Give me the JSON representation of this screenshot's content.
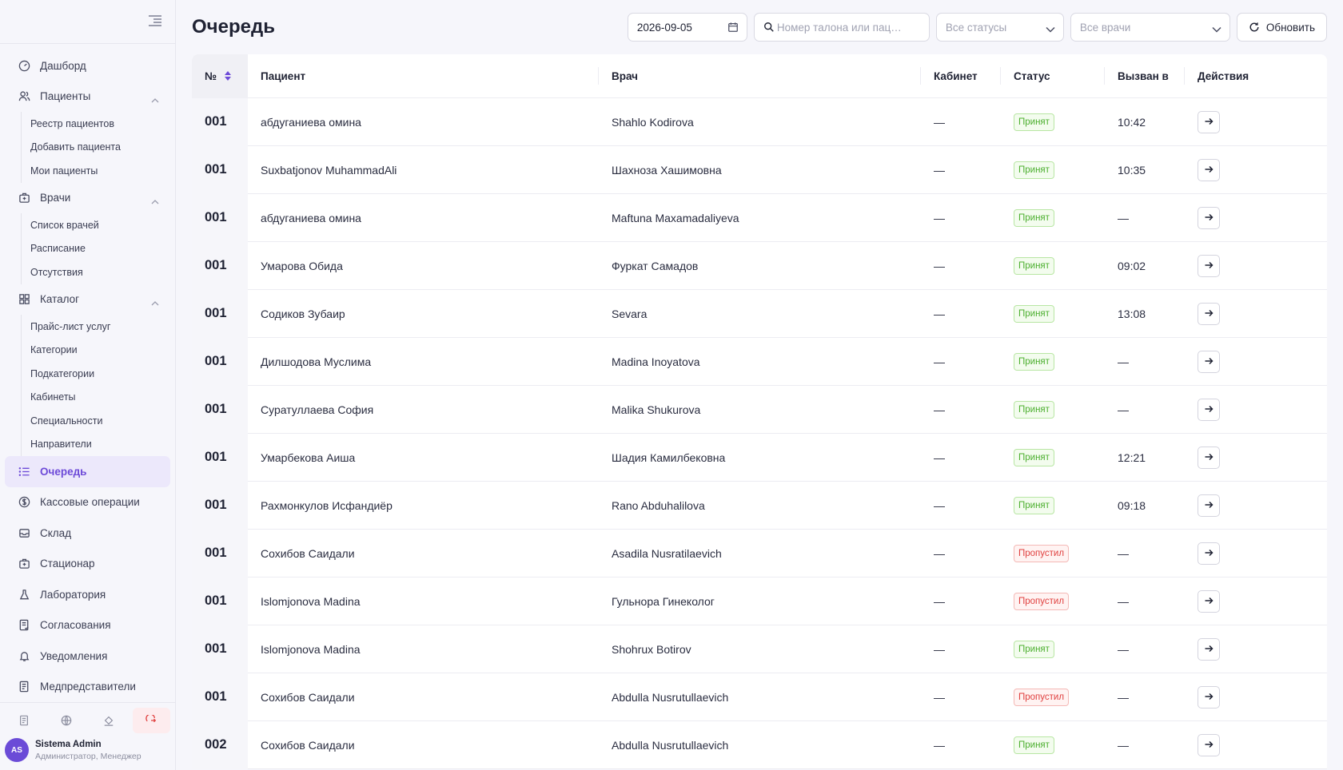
{
  "sidebar": {
    "items": [
      {
        "label": "Дашборд"
      },
      {
        "label": "Пациенты"
      },
      {
        "label": "Врачи"
      },
      {
        "label": "Каталог"
      },
      {
        "label": "Очередь"
      },
      {
        "label": "Кассовые операции"
      },
      {
        "label": "Склад"
      },
      {
        "label": "Стационар"
      },
      {
        "label": "Лаборатория"
      },
      {
        "label": "Согласования"
      },
      {
        "label": "Уведомления"
      },
      {
        "label": "Медпредставители"
      }
    ],
    "patients_sub": [
      "Реестр пациентов",
      "Добавить пациента",
      "Мои пациенты"
    ],
    "doctors_sub": [
      "Список врачей",
      "Расписание",
      "Отсутствия"
    ],
    "catalog_sub": [
      "Прайс-лист услуг",
      "Категории",
      "Подкатегории",
      "Кабинеты",
      "Специальности",
      "Направители"
    ],
    "active_item": "Очередь"
  },
  "user": {
    "initials": "AS",
    "name": "Sistema Admin",
    "role": "Администратор, Менеджер"
  },
  "header": {
    "title": "Очередь",
    "date_value": "2026-09-05",
    "search_placeholder": "Номер талона или пац…",
    "status_select": "Все статусы",
    "doctor_select": "Все врачи",
    "refresh_label": "Обновить"
  },
  "table": {
    "columns": [
      "№",
      "Пациент",
      "Врач",
      "Кабинет",
      "Статус",
      "Вызван в",
      "Действия"
    ],
    "rows": [
      {
        "num": "001",
        "patient": "абдуганиева омина",
        "doctor": "Shahlo Kodirova",
        "cabinet": "—",
        "status": "Принят",
        "called": "10:42"
      },
      {
        "num": "001",
        "patient": "Suxbatjonov MuhammadAli",
        "doctor": "Шахноза Хашимовна",
        "cabinet": "—",
        "status": "Принят",
        "called": "10:35"
      },
      {
        "num": "001",
        "patient": "абдуганиева омина",
        "doctor": "Maftuna Maxamadaliyeva",
        "cabinet": "—",
        "status": "Принят",
        "called": "—"
      },
      {
        "num": "001",
        "patient": "Умарова Обида",
        "doctor": "Фуркат Самадов",
        "cabinet": "—",
        "status": "Принят",
        "called": "09:02"
      },
      {
        "num": "001",
        "patient": "Содиков Зубаир",
        "doctor": "Sevara",
        "cabinet": "—",
        "status": "Принят",
        "called": "13:08"
      },
      {
        "num": "001",
        "patient": "Дилшодова Муслима",
        "doctor": "Madina Inoyatova",
        "cabinet": "—",
        "status": "Принят",
        "called": "—"
      },
      {
        "num": "001",
        "patient": "Суратуллаева София",
        "doctor": "Malika Shukurova",
        "cabinet": "—",
        "status": "Принят",
        "called": "—"
      },
      {
        "num": "001",
        "patient": "Умарбекова Аиша",
        "doctor": "Шадия Камилбековна",
        "cabinet": "—",
        "status": "Принят",
        "called": "12:21"
      },
      {
        "num": "001",
        "patient": "Рахмонкулов Исфандиёр",
        "doctor": "Rano Abduhalilova",
        "cabinet": "—",
        "status": "Принят",
        "called": "09:18"
      },
      {
        "num": "001",
        "patient": "Сохибов Саидали",
        "doctor": "Asadila Nusratilaevich",
        "cabinet": "—",
        "status": "Пропустил",
        "called": "—"
      },
      {
        "num": "001",
        "patient": "Islomjonova Madina",
        "doctor": "Гульнора Гинеколог",
        "cabinet": "—",
        "status": "Пропустил",
        "called": "—"
      },
      {
        "num": "001",
        "patient": "Islomjonova Madina",
        "doctor": "Shohrux Botirov",
        "cabinet": "—",
        "status": "Принят",
        "called": "—"
      },
      {
        "num": "001",
        "patient": "Сохибов Саидали",
        "doctor": "Abdulla Nusrutullaevich",
        "cabinet": "—",
        "status": "Пропустил",
        "called": "—"
      },
      {
        "num": "002",
        "patient": "Сохибов Саидали",
        "doctor": "Abdulla Nusrutullaevich",
        "cabinet": "—",
        "status": "Принят",
        "called": "—"
      }
    ]
  },
  "colors": {
    "accent": "#6d4ad8",
    "accepted": "#4caf2f",
    "missed": "#e0403f"
  }
}
